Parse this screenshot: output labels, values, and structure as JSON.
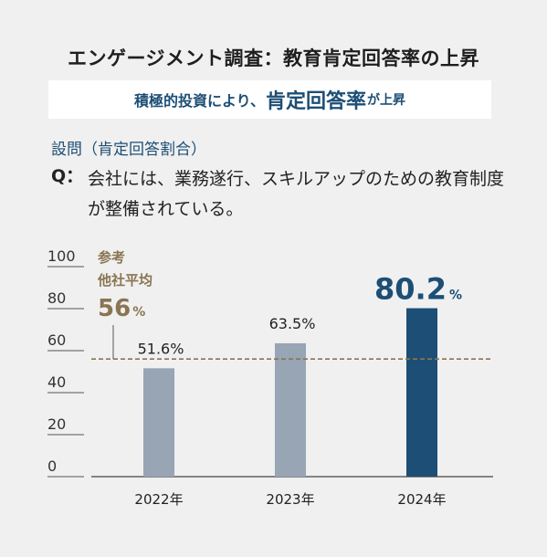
{
  "header": {
    "title": "エンゲージメント調査：教育肯定回答率の上昇",
    "banner_prefix": "積極的投資により、",
    "banner_emphasis": "肯定回答率",
    "banner_suffix": "が上昇"
  },
  "question": {
    "label": "設問（肯定回答割合）",
    "mark": "Q：",
    "text": "会社には、業務遂行、スキルアップのための教育制度が整備されている。"
  },
  "colors": {
    "highlight_bar": "#1d4e75",
    "normal_bar": "#97a5b5",
    "reference_line": "#8a7553",
    "accent_text": "#1d4e75"
  },
  "chart_data": {
    "type": "bar",
    "categories": [
      "2022年",
      "2023年",
      "2024年"
    ],
    "values": [
      51.6,
      63.5,
      80.2
    ],
    "value_labels": [
      "51.6%",
      "63.5%",
      "80.2"
    ],
    "highlight_unit": "%",
    "highlight_index": 2,
    "ylim": [
      0,
      100
    ],
    "yticks": [
      0,
      20,
      40,
      60,
      80,
      100
    ],
    "grid": false,
    "reference": {
      "value": 56,
      "label_line1": "参考",
      "label_line2": "他社平均",
      "value_label": "56",
      "unit": "%"
    }
  }
}
